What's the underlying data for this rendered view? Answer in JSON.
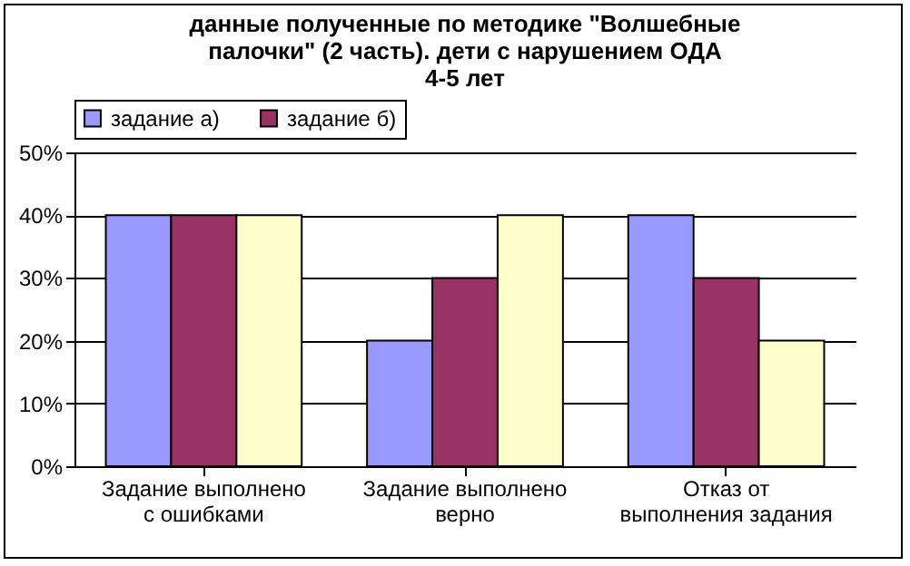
{
  "chart_data": {
    "type": "bar",
    "title": "данные полученные по методике \"Волшебные палочки\" (2 часть). дети с нарушением ОДА 4-5 лет",
    "categories": [
      "Задание выполнено с ошибками",
      "Задание выполнено верно",
      "Отказ от выполнения задания"
    ],
    "series": [
      {
        "name": "задание а)",
        "color": "#9999ff",
        "values": [
          40,
          20,
          40
        ]
      },
      {
        "name": "задание б)",
        "color": "#993366",
        "values": [
          40,
          30,
          30
        ]
      },
      {
        "color": "#ffffcc",
        "values": [
          40,
          40,
          20
        ]
      }
    ],
    "ylim": [
      0,
      50
    ],
    "yticks": [
      {
        "value": 0,
        "label": "0%"
      },
      {
        "value": 10,
        "label": "10%"
      },
      {
        "value": 20,
        "label": "20%"
      },
      {
        "value": 30,
        "label": "30%"
      },
      {
        "value": 40,
        "label": "40%"
      },
      {
        "value": 50,
        "label": "50%"
      }
    ],
    "grid": "y",
    "legend": "top"
  }
}
